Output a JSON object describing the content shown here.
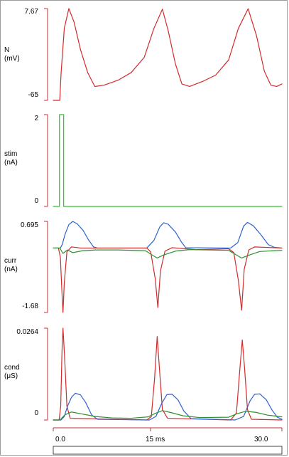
{
  "colors": {
    "red": "#d22b2b",
    "blue": "#2f62cf",
    "green": "#2f8d2f",
    "bright_green": "#29c629",
    "axis_red": "#c53030",
    "dark": "#333333"
  },
  "time_axis": {
    "labels": [
      "0.0",
      "15 ms",
      "30.0"
    ]
  },
  "chart_data": [
    {
      "type": "line",
      "title": "",
      "axis_name": "N",
      "unit": "(mV)",
      "ylim": [
        -65,
        7.67
      ],
      "y_ticks": [
        "7.67",
        "-65"
      ],
      "series": [
        {
          "color": "red",
          "points": [
            [
              0,
              -65
            ],
            [
              0.4,
              -65
            ],
            [
              1.0,
              -65
            ],
            [
              1.2,
              -44
            ],
            [
              1.7,
              -8
            ],
            [
              2.4,
              7.67
            ],
            [
              3.2,
              -3
            ],
            [
              4.2,
              -25
            ],
            [
              5.3,
              -43
            ],
            [
              6.4,
              -54
            ],
            [
              7.8,
              -53
            ],
            [
              10.0,
              -49
            ],
            [
              12.0,
              -43
            ],
            [
              14.0,
              -31
            ],
            [
              15.5,
              -8
            ],
            [
              16.8,
              7.2
            ],
            [
              17.7,
              -10
            ],
            [
              18.8,
              -36
            ],
            [
              19.8,
              -52
            ],
            [
              21.0,
              -54
            ],
            [
              23.0,
              -50
            ],
            [
              25.0,
              -45
            ],
            [
              27.0,
              -33
            ],
            [
              28.5,
              -8
            ],
            [
              30.0,
              7.5
            ],
            [
              31.3,
              -14
            ],
            [
              32.5,
              -42
            ],
            [
              33.5,
              -53
            ],
            [
              34.4,
              -54
            ],
            [
              35.2,
              -52
            ]
          ]
        }
      ]
    },
    {
      "type": "line",
      "title": "",
      "axis_name": "stim",
      "unit": "(nA)",
      "ylim": [
        0,
        2
      ],
      "y_ticks": [
        "2",
        "0"
      ],
      "series": [
        {
          "color": "bright_green",
          "points": [
            [
              0,
              0
            ],
            [
              0.95,
              0
            ],
            [
              0.95,
              2
            ],
            [
              1.6,
              2
            ],
            [
              1.6,
              0
            ],
            [
              35.2,
              0
            ]
          ]
        }
      ]
    },
    {
      "type": "line",
      "title": "",
      "axis_name": "curr",
      "unit": "(nA)",
      "ylim": [
        -1.68,
        0.695
      ],
      "y_ticks": [
        "0.695",
        "-1.68"
      ],
      "series": [
        {
          "color": "blue",
          "points": [
            [
              0,
              0
            ],
            [
              1.1,
              0
            ],
            [
              1.4,
              0.1
            ],
            [
              1.8,
              0.35
            ],
            [
              2.4,
              0.61
            ],
            [
              3.0,
              0.695
            ],
            [
              3.7,
              0.63
            ],
            [
              4.6,
              0.46
            ],
            [
              5.4,
              0.22
            ],
            [
              6.2,
              0.03
            ],
            [
              6.8,
              0
            ],
            [
              14.4,
              0
            ],
            [
              15.5,
              0.2
            ],
            [
              16.4,
              0.55
            ],
            [
              17.0,
              0.66
            ],
            [
              17.7,
              0.62
            ],
            [
              18.8,
              0.42
            ],
            [
              19.8,
              0.14
            ],
            [
              20.4,
              0.01
            ],
            [
              27.3,
              0
            ],
            [
              28.4,
              0.14
            ],
            [
              29.3,
              0.57
            ],
            [
              29.9,
              0.67
            ],
            [
              30.8,
              0.58
            ],
            [
              32.0,
              0.34
            ],
            [
              33.1,
              0.09
            ],
            [
              34.0,
              0.02
            ],
            [
              35.2,
              0
            ]
          ]
        },
        {
          "color": "red",
          "points": [
            [
              0,
              0
            ],
            [
              0.8,
              0
            ],
            [
              1.1,
              -0.25
            ],
            [
              1.35,
              -1.2
            ],
            [
              1.5,
              -1.68
            ],
            [
              1.7,
              -0.9
            ],
            [
              2.1,
              -0.1
            ],
            [
              2.8,
              0.03
            ],
            [
              4.2,
              0
            ],
            [
              14.4,
              0
            ],
            [
              15.0,
              -0.1
            ],
            [
              15.7,
              -0.8
            ],
            [
              16.1,
              -1.55
            ],
            [
              16.5,
              -0.6
            ],
            [
              17.2,
              -0.08
            ],
            [
              18.3,
              0.01
            ],
            [
              20.5,
              -0.02
            ],
            [
              22.0,
              -0.04
            ],
            [
              27.0,
              -0.02
            ],
            [
              27.8,
              -0.12
            ],
            [
              28.5,
              -0.85
            ],
            [
              29.0,
              -1.62
            ],
            [
              29.4,
              -0.55
            ],
            [
              30.1,
              -0.05
            ],
            [
              31.0,
              0.03
            ],
            [
              35.2,
              0
            ]
          ]
        },
        {
          "color": "green",
          "points": [
            [
              0,
              0
            ],
            [
              1.0,
              0
            ],
            [
              1.5,
              -0.14
            ],
            [
              2.2,
              -0.05
            ],
            [
              3.0,
              -0.12
            ],
            [
              4.5,
              -0.07
            ],
            [
              6.5,
              -0.05
            ],
            [
              10.0,
              -0.05
            ],
            [
              14.2,
              -0.07
            ],
            [
              15.2,
              -0.18
            ],
            [
              16.0,
              -0.26
            ],
            [
              17.0,
              -0.18
            ],
            [
              18.8,
              -0.08
            ],
            [
              21.0,
              -0.04
            ],
            [
              27.0,
              -0.06
            ],
            [
              28.0,
              -0.16
            ],
            [
              29.0,
              -0.26
            ],
            [
              30.2,
              -0.18
            ],
            [
              31.8,
              -0.09
            ],
            [
              34.0,
              -0.07
            ],
            [
              35.2,
              -0.06
            ]
          ]
        }
      ]
    },
    {
      "type": "line",
      "title": "",
      "axis_name": "cond",
      "unit": "(μS)",
      "ylim": [
        0,
        0.0264
      ],
      "y_ticks": [
        "0.0264",
        "0"
      ],
      "series": [
        {
          "color": "red",
          "points": [
            [
              0,
              0
            ],
            [
              0.9,
              0
            ],
            [
              1.15,
              0.004
            ],
            [
              1.35,
              0.02
            ],
            [
              1.5,
              0.0264
            ],
            [
              1.75,
              0.018
            ],
            [
              2.1,
              0.004
            ],
            [
              2.6,
              0.0005
            ],
            [
              14.4,
              0
            ],
            [
              15.1,
              0.001
            ],
            [
              15.6,
              0.012
            ],
            [
              16.0,
              0.024
            ],
            [
              16.3,
              0.016
            ],
            [
              16.8,
              0.003
            ],
            [
              17.6,
              0.0005
            ],
            [
              27.3,
              0
            ],
            [
              28.2,
              0.002
            ],
            [
              28.7,
              0.014
            ],
            [
              29.1,
              0.023
            ],
            [
              29.45,
              0.015
            ],
            [
              29.9,
              0.003
            ],
            [
              30.5,
              0.0002
            ],
            [
              35.2,
              0
            ]
          ]
        },
        {
          "color": "blue",
          "points": [
            [
              0,
              0
            ],
            [
              1.2,
              0
            ],
            [
              1.7,
              0.001
            ],
            [
              2.2,
              0.004
            ],
            [
              2.8,
              0.0065
            ],
            [
              3.4,
              0.0077
            ],
            [
              4.2,
              0.0072
            ],
            [
              5.0,
              0.005
            ],
            [
              5.9,
              0.0015
            ],
            [
              6.8,
              0.0002
            ],
            [
              14.8,
              0
            ],
            [
              15.8,
              0.001
            ],
            [
              16.7,
              0.0048
            ],
            [
              17.5,
              0.0073
            ],
            [
              18.3,
              0.0074
            ],
            [
              19.2,
              0.0058
            ],
            [
              20.1,
              0.0026
            ],
            [
              21.2,
              0.0004
            ],
            [
              28.0,
              0
            ],
            [
              29.3,
              0.001
            ],
            [
              30.3,
              0.0055
            ],
            [
              31.0,
              0.0074
            ],
            [
              31.8,
              0.0075
            ],
            [
              32.8,
              0.0058
            ],
            [
              33.7,
              0.0028
            ],
            [
              34.5,
              0.0008
            ],
            [
              35.2,
              0.0002
            ]
          ]
        },
        {
          "color": "green",
          "points": [
            [
              0,
              0
            ],
            [
              1.0,
              0
            ],
            [
              1.8,
              0.0015
            ],
            [
              2.8,
              0.0023
            ],
            [
              4.5,
              0.0017
            ],
            [
              6.5,
              0.001
            ],
            [
              9.0,
              0.0006
            ],
            [
              12.0,
              0.0005
            ],
            [
              14.6,
              0.0009
            ],
            [
              15.6,
              0.0018
            ],
            [
              16.8,
              0.0027
            ],
            [
              18.2,
              0.0021
            ],
            [
              20.0,
              0.0012
            ],
            [
              22.5,
              0.0007
            ],
            [
              27.0,
              0.0008
            ],
            [
              28.3,
              0.0018
            ],
            [
              29.6,
              0.0025
            ],
            [
              31.2,
              0.0022
            ],
            [
              33.0,
              0.0014
            ],
            [
              35.2,
              0.0009
            ]
          ]
        }
      ]
    }
  ]
}
